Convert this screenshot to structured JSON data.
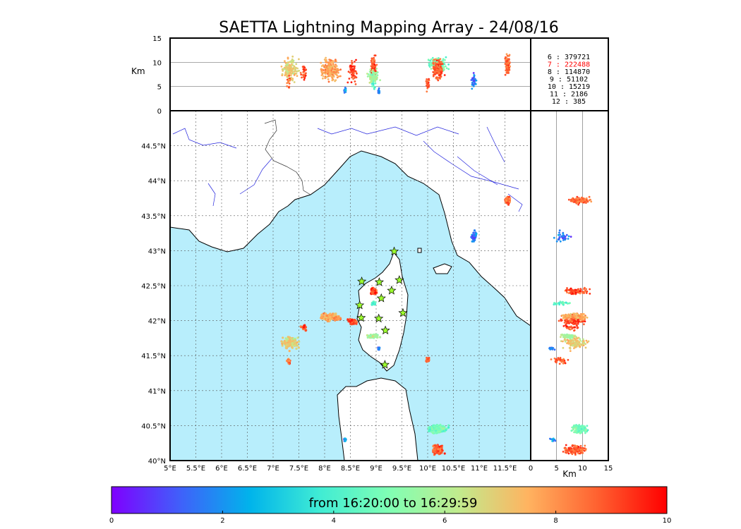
{
  "chart_data": {
    "type": "scatter",
    "title": "SAETTA Lightning Mapping Array - 24/08/16",
    "altitude_panel": {
      "ylabel": "Km",
      "yticks": [
        "0",
        "5",
        "10",
        "15"
      ],
      "ylim": [
        0,
        15
      ]
    },
    "side_panel": {
      "xlabel": "Km",
      "xticks": [
        "0",
        "5",
        "10",
        "15"
      ],
      "xlim": [
        0,
        15
      ]
    },
    "map": {
      "xlim": [
        5,
        12.0
      ],
      "ylim": [
        40,
        45.0
      ],
      "xticks": [
        "5°E",
        "5.5°E",
        "6°E",
        "6.5°E",
        "7°E",
        "7.5°E",
        "8°E",
        "8.5°E",
        "9°E",
        "9.5°E",
        "10°E",
        "10.5°E",
        "11°E",
        "11.5°E"
      ],
      "yticks": [
        "40°N",
        "40.5°N",
        "41°N",
        "41.5°N",
        "42°N",
        "42.5°N",
        "43°N",
        "43.5°N",
        "44°N",
        "44.5°N"
      ],
      "grid": true,
      "sea_color": "#b8eefc"
    },
    "legend": {
      "placement": "top-right",
      "entries": [
        {
          "key": "6",
          "sep": ":",
          "count": "379721",
          "color": "#000000"
        },
        {
          "key": "7",
          "sep": ":",
          "count": "222488",
          "color": "#ff0000"
        },
        {
          "key": "8",
          "sep": ":",
          "count": "114870",
          "color": "#000000"
        },
        {
          "key": "9",
          "sep": ":",
          "count": "51102",
          "color": "#000000"
        },
        {
          "key": "10",
          "sep": ":",
          "count": "15219",
          "color": "#000000"
        },
        {
          "key": "11",
          "sep": ":",
          "count": "2186",
          "color": "#000000"
        },
        {
          "key": "12",
          "sep": ":",
          "count": "385",
          "color": "#000000"
        }
      ]
    },
    "colorbar": {
      "label": "from 16:20:00 to 16:29:59",
      "ticks": [
        "0",
        "2",
        "4",
        "6",
        "8",
        "10"
      ],
      "range": [
        0,
        10
      ],
      "colormap": "rainbow",
      "colors": [
        "#7f00ff",
        "#3f61fa",
        "#00b4eb",
        "#40ecd4",
        "#80ffb4",
        "#c1eb8d",
        "#ffb360",
        "#ff6130",
        "#ff0000"
      ]
    },
    "stations": [
      {
        "lon": 9.35,
        "lat": 42.99
      },
      {
        "lon": 8.72,
        "lat": 42.56
      },
      {
        "lon": 9.06,
        "lat": 42.55
      },
      {
        "lon": 9.45,
        "lat": 42.58
      },
      {
        "lon": 9.3,
        "lat": 42.43
      },
      {
        "lon": 9.1,
        "lat": 42.32
      },
      {
        "lon": 8.68,
        "lat": 42.22
      },
      {
        "lon": 9.52,
        "lat": 42.11
      },
      {
        "lon": 8.71,
        "lat": 42.04
      },
      {
        "lon": 9.05,
        "lat": 42.03
      },
      {
        "lon": 9.18,
        "lat": 41.86
      },
      {
        "lon": 9.17,
        "lat": 41.37
      }
    ],
    "clusters": [
      {
        "lon": 7.33,
        "lat": 41.68,
        "dlon": 0.22,
        "dlat": 0.12,
        "alt": 8.5,
        "dalt": 3.0,
        "t": 7.0,
        "n": 140
      },
      {
        "lon": 7.3,
        "lat": 41.42,
        "dlon": 0.05,
        "dlat": 0.06,
        "alt": 6.0,
        "dalt": 2.0,
        "t": 8.5,
        "n": 20
      },
      {
        "lon": 7.6,
        "lat": 41.9,
        "dlon": 0.08,
        "dlat": 0.05,
        "alt": 8.0,
        "dalt": 2.0,
        "t": 9.0,
        "n": 30
      },
      {
        "lon": 8.1,
        "lat": 42.05,
        "dlon": 0.25,
        "dlat": 0.07,
        "alt": 8.5,
        "dalt": 3.0,
        "t": 7.8,
        "n": 180
      },
      {
        "lon": 8.55,
        "lat": 41.98,
        "dlon": 0.12,
        "dlat": 0.06,
        "alt": 8.0,
        "dalt": 3.0,
        "t": 9.2,
        "n": 60
      },
      {
        "lon": 8.95,
        "lat": 42.42,
        "dlon": 0.1,
        "dlat": 0.06,
        "alt": 9.0,
        "dalt": 3.0,
        "t": 9.0,
        "n": 90
      },
      {
        "lon": 8.95,
        "lat": 42.25,
        "dlon": 0.06,
        "dlat": 0.03,
        "alt": 6.0,
        "dalt": 2.0,
        "t": 4.5,
        "n": 30
      },
      {
        "lon": 8.95,
        "lat": 41.78,
        "dlon": 0.15,
        "dlat": 0.04,
        "alt": 7.0,
        "dalt": 2.0,
        "t": 5.8,
        "n": 70
      },
      {
        "lon": 9.05,
        "lat": 41.6,
        "dlon": 0.03,
        "dlat": 0.03,
        "alt": 4.0,
        "dalt": 1.0,
        "t": 1.5,
        "n": 15
      },
      {
        "lon": 10.0,
        "lat": 41.45,
        "dlon": 0.04,
        "dlat": 0.05,
        "alt": 5.0,
        "dalt": 2.0,
        "t": 9.0,
        "n": 20
      },
      {
        "lon": 10.2,
        "lat": 40.45,
        "dlon": 0.25,
        "dlat": 0.08,
        "alt": 9.5,
        "dalt": 2.0,
        "t": 4.8,
        "n": 150
      },
      {
        "lon": 10.2,
        "lat": 40.16,
        "dlon": 0.15,
        "dlat": 0.1,
        "alt": 8.5,
        "dalt": 3.0,
        "t": 8.8,
        "n": 130
      },
      {
        "lon": 11.55,
        "lat": 43.72,
        "dlon": 0.07,
        "dlat": 0.08,
        "alt": 9.5,
        "dalt": 3.0,
        "t": 8.7,
        "n": 80
      },
      {
        "lon": 10.9,
        "lat": 43.2,
        "dlon": 0.06,
        "dlat": 0.1,
        "alt": 6.0,
        "dalt": 2.0,
        "t": 1.5,
        "n": 35
      },
      {
        "lon": 8.4,
        "lat": 40.3,
        "dlon": 0.03,
        "dlat": 0.04,
        "alt": 4.0,
        "dalt": 1.0,
        "t": 2.0,
        "n": 10
      }
    ]
  }
}
